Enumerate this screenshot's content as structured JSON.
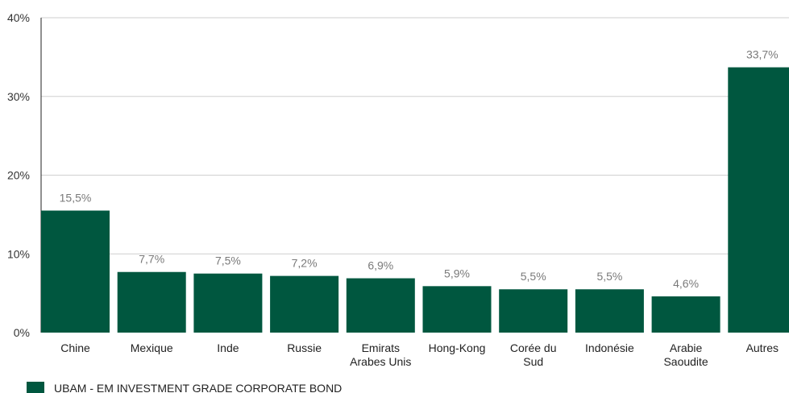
{
  "chart_data": {
    "type": "bar",
    "categories": [
      "Chine",
      "Mexique",
      "Inde",
      "Russie",
      "Emirats Arabes Unis",
      "Hong-Kong",
      "Corée du Sud",
      "Indonésie",
      "Arabie Saoudite",
      "Autres"
    ],
    "category_lines": [
      [
        "Chine"
      ],
      [
        "Mexique"
      ],
      [
        "Inde"
      ],
      [
        "Russie"
      ],
      [
        "Emirats",
        "Arabes Unis"
      ],
      [
        "Hong-Kong"
      ],
      [
        "Corée du",
        "Sud"
      ],
      [
        "Indonésie"
      ],
      [
        "Arabie",
        "Saoudite"
      ],
      [
        "Autres"
      ]
    ],
    "series": [
      {
        "name": "UBAM - EM INVESTMENT GRADE CORPORATE BOND",
        "values": [
          15.5,
          7.7,
          7.5,
          7.2,
          6.9,
          5.9,
          5.5,
          5.5,
          4.6,
          33.7
        ],
        "labels": [
          "15,5%",
          "7,7%",
          "7,5%",
          "7,2%",
          "6,9%",
          "5,9%",
          "5,5%",
          "5,5%",
          "4,6%",
          "33,7%"
        ]
      }
    ],
    "ylim": [
      0,
      40
    ],
    "yticks": [
      0,
      10,
      20,
      30,
      40
    ],
    "ytick_labels": [
      "0%",
      "10%",
      "20%",
      "30%",
      "40%"
    ],
    "grid": true,
    "legend_position": "bottom-left",
    "bar_color": "#00573f"
  }
}
